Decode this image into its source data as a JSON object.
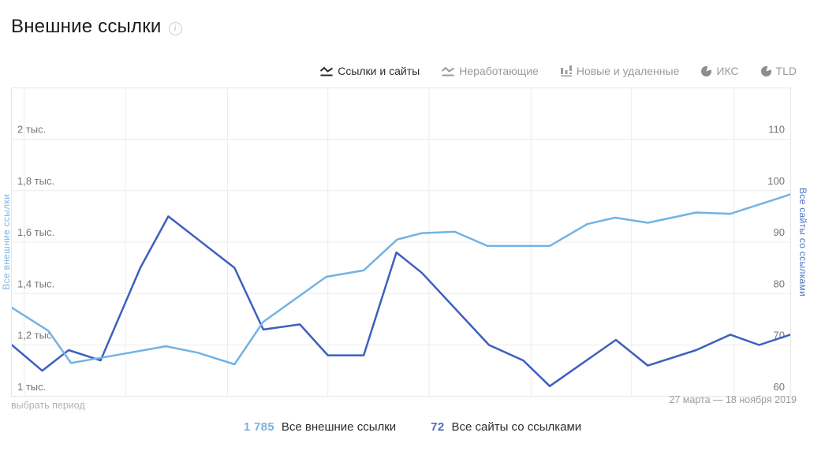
{
  "page": {
    "title": "Внешние ссылки"
  },
  "tabs": [
    {
      "label": "Ссылки и сайты",
      "icon": "line-chart-icon",
      "active": true
    },
    {
      "label": "Неработающие",
      "icon": "line-chart-icon",
      "active": false
    },
    {
      "label": "Новые и удаленные",
      "icon": "bar-chart-icon",
      "active": false
    },
    {
      "label": "ИКС",
      "icon": "pie-chart-icon",
      "active": false
    },
    {
      "label": "TLD",
      "icon": "pie-chart-icon",
      "active": false
    }
  ],
  "chart_data": {
    "type": "line",
    "grid": true,
    "period": {
      "select_label": "выбрать период",
      "range_label": "27 марта — 18 ноября 2019"
    },
    "left_axis": {
      "title": "Все внешние ссылки",
      "ticks": [
        2000,
        1800,
        1600,
        1400,
        1200,
        1000
      ],
      "tick_labels": [
        "2 тыс.",
        "1,8 тыс.",
        "1,6 тыс.",
        "1,4 тыс.",
        "1,2 тыс.",
        "1 тыс."
      ],
      "range": [
        1000,
        2000
      ]
    },
    "right_axis": {
      "title": "Все сайты со ссылками",
      "ticks": [
        110,
        100,
        90,
        80,
        70,
        60
      ],
      "tick_labels": [
        "110",
        "100",
        "90",
        "80",
        "70",
        "60"
      ],
      "range": [
        60,
        110
      ]
    },
    "x_unit": "fraction of period 27 марта — 18 ноября 2019",
    "x_gridlines": [
      0.016,
      0.146,
      0.277,
      0.406,
      0.536,
      0.667,
      0.796,
      0.928
    ],
    "series": [
      {
        "name": "Все сайты со ссылками",
        "axis": "right",
        "color": "#3d5fc0",
        "current_value": 72,
        "points": [
          [
            0,
            70
          ],
          [
            0.039,
            65
          ],
          [
            0.073,
            69
          ],
          [
            0.114,
            67
          ],
          [
            0.165,
            85
          ],
          [
            0.201,
            95
          ],
          [
            0.286,
            85
          ],
          [
            0.323,
            73
          ],
          [
            0.37,
            74
          ],
          [
            0.406,
            68
          ],
          [
            0.452,
            68
          ],
          [
            0.494,
            88
          ],
          [
            0.527,
            84
          ],
          [
            0.613,
            70
          ],
          [
            0.657,
            67
          ],
          [
            0.691,
            62
          ],
          [
            0.776,
            71
          ],
          [
            0.817,
            66
          ],
          [
            0.879,
            69
          ],
          [
            0.923,
            72
          ],
          [
            0.96,
            70
          ],
          [
            1,
            72
          ]
        ]
      },
      {
        "name": "Все внешние ссылки",
        "axis": "left",
        "color": "#72b3e4",
        "current_value": 1785,
        "points": [
          [
            0,
            1345
          ],
          [
            0.047,
            1255
          ],
          [
            0.076,
            1130
          ],
          [
            0.114,
            1150
          ],
          [
            0.198,
            1195
          ],
          [
            0.239,
            1170
          ],
          [
            0.286,
            1125
          ],
          [
            0.323,
            1290
          ],
          [
            0.404,
            1465
          ],
          [
            0.452,
            1490
          ],
          [
            0.495,
            1610
          ],
          [
            0.527,
            1635
          ],
          [
            0.569,
            1640
          ],
          [
            0.611,
            1585
          ],
          [
            0.691,
            1585
          ],
          [
            0.739,
            1670
          ],
          [
            0.775,
            1695
          ],
          [
            0.817,
            1675
          ],
          [
            0.879,
            1715
          ],
          [
            0.923,
            1710
          ],
          [
            1,
            1785
          ]
        ]
      }
    ],
    "colors": {
      "grid": "#ececec",
      "border": "#e6e6e6",
      "tick_text": "#757575"
    }
  },
  "legend": [
    {
      "value": "1 785",
      "label": "Все внешние ссылки",
      "color": "#7cb2e0"
    },
    {
      "value": "72",
      "label": "Все сайты со ссылками",
      "color": "#4a6db8"
    }
  ]
}
